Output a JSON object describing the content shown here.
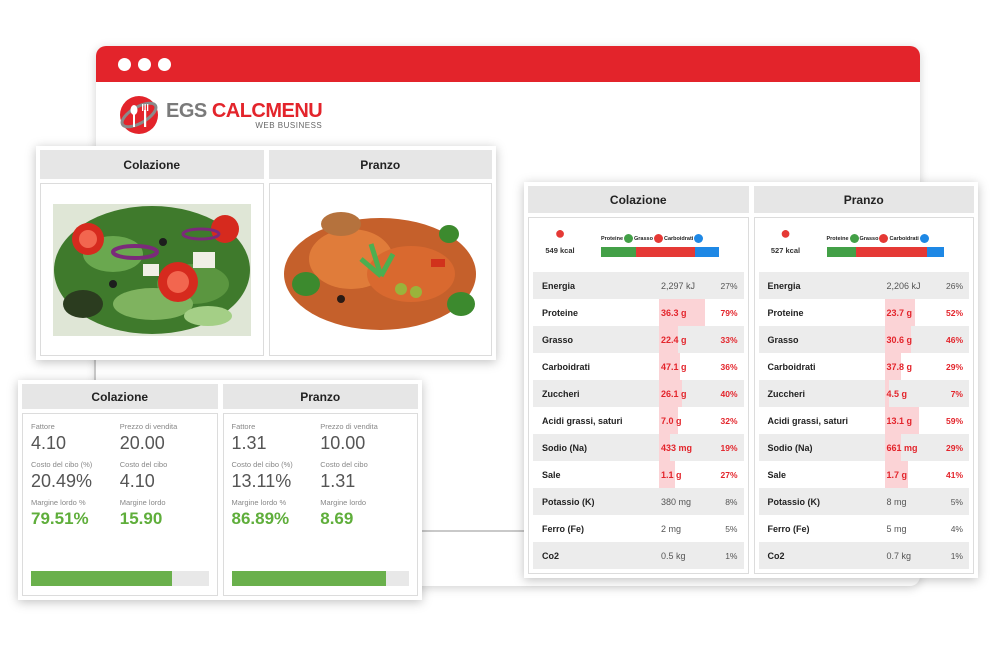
{
  "brand": {
    "logo_main_gray": "EGS",
    "logo_main_red": "CALCMENU",
    "logo_sub": "WEB BUSINESS",
    "accent": "#e3242b"
  },
  "photos": {
    "columns": [
      {
        "title": "Colazione",
        "image": "salad"
      },
      {
        "title": "Pranzo",
        "image": "chicken-dish"
      }
    ]
  },
  "cost": {
    "columns": [
      {
        "title": "Colazione",
        "fattore_label": "Fattore",
        "fattore": "4.10",
        "prezzo_label": "Prezzo di vendita",
        "prezzo": "20.00",
        "costo_pct_label": "Costo del cibo (%)",
        "costo_pct": "20.49%",
        "costo_label": "Costo del cibo",
        "costo": "4.10",
        "margine_pct_label": "Margine lordo %",
        "margine_pct": "79.51%",
        "margine_label": "Margine lordo",
        "margine": "15.90",
        "progress": 0.7951
      },
      {
        "title": "Pranzo",
        "fattore_label": "Fattore",
        "fattore": "1.31",
        "prezzo_label": "Prezzo di vendita",
        "prezzo": "10.00",
        "costo_pct_label": "Costo del cibo (%)",
        "costo_pct": "13.11%",
        "costo_label": "Costo del cibo",
        "costo": "1.31",
        "margine_pct_label": "Margine lordo %",
        "margine_pct": "86.89%",
        "margine_label": "Margine lordo",
        "margine": "8.69",
        "progress": 0.8689
      }
    ]
  },
  "nutrition": {
    "legend": {
      "proteine": "Proteine",
      "grasso": "Grasso",
      "carboidrati": "Carboidrati"
    },
    "colors": {
      "proteine": "#43a047",
      "grasso": "#e53935",
      "carboidrati": "#1e88e5"
    },
    "columns": [
      {
        "title": "Colazione",
        "kcal": "549 kcal",
        "macro_split": [
          0.3,
          0.5,
          0.2
        ],
        "rows": [
          {
            "name": "Energia",
            "value": "2,297 kJ",
            "pct": "27%",
            "level": 0,
            "hi": false
          },
          {
            "name": "Proteine",
            "value": "36.3 g",
            "pct": "79%",
            "level": 0.79,
            "hi": true
          },
          {
            "name": "Grasso",
            "value": "22.4 g",
            "pct": "33%",
            "level": 0.33,
            "hi": true
          },
          {
            "name": "Carboidrati",
            "value": "47.1 g",
            "pct": "36%",
            "level": 0.36,
            "hi": true
          },
          {
            "name": "Zuccheri",
            "value": "26.1 g",
            "pct": "40%",
            "level": 0.4,
            "hi": true
          },
          {
            "name": "Acidi grassi, saturi",
            "value": "7.0 g",
            "pct": "32%",
            "level": 0.32,
            "hi": true
          },
          {
            "name": "Sodio (Na)",
            "value": "433 mg",
            "pct": "19%",
            "level": 0.19,
            "hi": true
          },
          {
            "name": "Sale",
            "value": "1.1 g",
            "pct": "27%",
            "level": 0.27,
            "hi": true
          },
          {
            "name": "Potassio (K)",
            "value": "380 mg",
            "pct": "8%",
            "level": 0,
            "hi": false
          },
          {
            "name": "Ferro (Fe)",
            "value": "2 mg",
            "pct": "5%",
            "level": 0,
            "hi": false
          },
          {
            "name": "Co2",
            "value": "0.5 kg",
            "pct": "1%",
            "level": 0,
            "hi": false
          }
        ]
      },
      {
        "title": "Pranzo",
        "kcal": "527 kcal",
        "macro_split": [
          0.25,
          0.6,
          0.15
        ],
        "rows": [
          {
            "name": "Energia",
            "value": "2,206 kJ",
            "pct": "26%",
            "level": 0,
            "hi": false
          },
          {
            "name": "Proteine",
            "value": "23.7 g",
            "pct": "52%",
            "level": 0.52,
            "hi": true
          },
          {
            "name": "Grasso",
            "value": "30.6 g",
            "pct": "46%",
            "level": 0.46,
            "hi": true
          },
          {
            "name": "Carboidrati",
            "value": "37.8 g",
            "pct": "29%",
            "level": 0.29,
            "hi": true
          },
          {
            "name": "Zuccheri",
            "value": "4.5 g",
            "pct": "7%",
            "level": 0.07,
            "hi": true
          },
          {
            "name": "Acidi grassi, saturi",
            "value": "13.1 g",
            "pct": "59%",
            "level": 0.59,
            "hi": true
          },
          {
            "name": "Sodio (Na)",
            "value": "661 mg",
            "pct": "29%",
            "level": 0.29,
            "hi": true
          },
          {
            "name": "Sale",
            "value": "1.7 g",
            "pct": "41%",
            "level": 0.41,
            "hi": true
          },
          {
            "name": "Potassio (K)",
            "value": "8 mg",
            "pct": "5%",
            "level": 0,
            "hi": false
          },
          {
            "name": "Ferro (Fe)",
            "value": "5 mg",
            "pct": "4%",
            "level": 0,
            "hi": false
          },
          {
            "name": "Co2",
            "value": "0.7 kg",
            "pct": "1%",
            "level": 0,
            "hi": false
          }
        ]
      }
    ]
  }
}
